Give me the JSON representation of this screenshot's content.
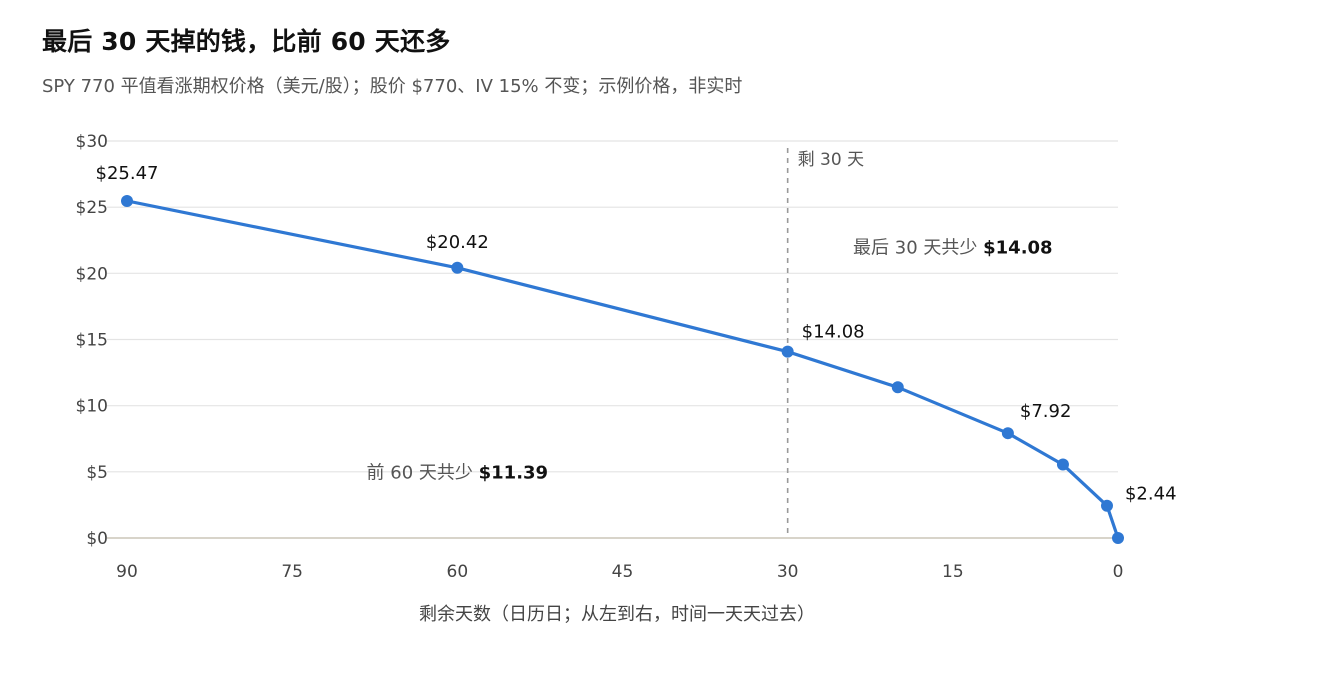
{
  "title": "最后 30 天掉的钱，比前 60 天还多",
  "subtitle": "SPY 770 平值看涨期权价格（美元/股）；股价 $770、IV 15% 不变；示例价格，非实时",
  "chart_data": {
    "type": "line",
    "title": "最后 30 天掉的钱，比前 60 天还多",
    "subtitle": "SPY 770 平值看涨期权价格（美元/股）；股价 $770、IV 15% 不变；示例价格，非实时",
    "xlabel": "剩余天数（日历日；从左到右，时间一天天过去）",
    "ylabel": "",
    "x_reversed": true,
    "xlim": [
      90,
      0
    ],
    "ylim": [
      0,
      30
    ],
    "x_ticks": [
      90,
      75,
      60,
      45,
      30,
      15,
      0
    ],
    "x_tick_labels": [
      "90",
      "75",
      "60",
      "45",
      "30",
      "15",
      "0"
    ],
    "y_ticks": [
      0,
      5,
      10,
      15,
      20,
      25,
      30
    ],
    "y_tick_labels": [
      "$0",
      "$5",
      "$10",
      "$15",
      "$20",
      "$25",
      "$30"
    ],
    "grid": "horizontal",
    "color": "#2f78d3",
    "series": [
      {
        "x": [
          90,
          60,
          30,
          20,
          10,
          5,
          1,
          0
        ],
        "y": [
          25.47,
          20.42,
          14.08,
          11.39,
          7.92,
          5.55,
          2.44,
          0
        ]
      }
    ],
    "point_labels": [
      {
        "x": 90,
        "y": 25.47,
        "text": "$25.47"
      },
      {
        "x": 60,
        "y": 20.42,
        "text": "$20.42"
      },
      {
        "x": 30,
        "y": 14.08,
        "text": "$14.08"
      },
      {
        "x": 10,
        "y": 7.92,
        "text": "$7.92"
      },
      {
        "x": 1,
        "y": 2.44,
        "text": "$2.44"
      }
    ],
    "reference_line": {
      "x": 30,
      "label": "剩 30 天"
    },
    "annotations": [
      {
        "text": "最后 30 天共少 ",
        "value": "$14.08",
        "x": 15,
        "y": 21.5
      },
      {
        "text": "前 60 天共少 ",
        "value": "$11.39",
        "x": 60,
        "y": 4.5
      }
    ]
  }
}
